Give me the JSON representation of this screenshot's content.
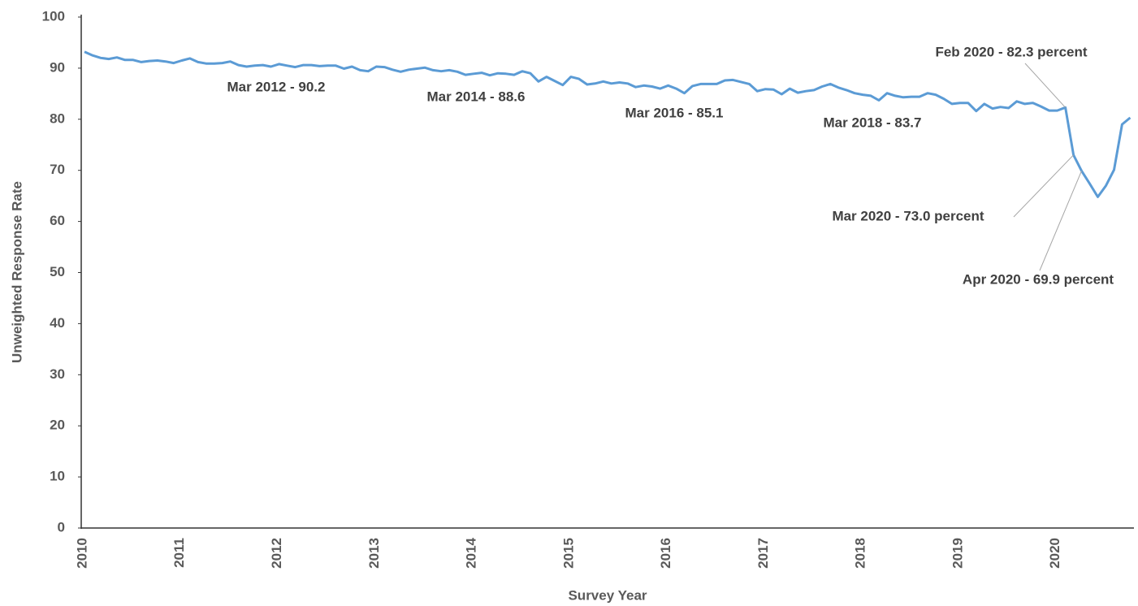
{
  "chart_data": {
    "type": "line",
    "y_label": "Unweighted Response Rate",
    "x_label": "Survey Year",
    "categories": [
      "2010",
      null,
      null,
      null,
      null,
      null,
      null,
      null,
      null,
      null,
      null,
      null,
      "2011",
      null,
      null,
      null,
      null,
      null,
      null,
      null,
      null,
      null,
      null,
      null,
      "2012",
      null,
      null,
      null,
      null,
      null,
      null,
      null,
      null,
      null,
      null,
      null,
      "2013",
      null,
      null,
      null,
      null,
      null,
      null,
      null,
      null,
      null,
      null,
      null,
      "2014",
      null,
      null,
      null,
      null,
      null,
      null,
      null,
      null,
      null,
      null,
      null,
      "2015",
      null,
      null,
      null,
      null,
      null,
      null,
      null,
      null,
      null,
      null,
      null,
      "2016",
      null,
      null,
      null,
      null,
      null,
      null,
      null,
      null,
      null,
      null,
      null,
      "2017",
      null,
      null,
      null,
      null,
      null,
      null,
      null,
      null,
      null,
      null,
      null,
      "2018",
      null,
      null,
      null,
      null,
      null,
      null,
      null,
      null,
      null,
      null,
      null,
      "2019",
      null,
      null,
      null,
      null,
      null,
      null,
      null,
      null,
      null,
      null,
      null,
      "2020",
      null,
      null,
      null,
      null,
      null,
      null,
      null,
      null,
      null
    ],
    "values": [
      93.2,
      92.5,
      92.0,
      91.8,
      92.1,
      91.6,
      91.6,
      91.2,
      91.4,
      91.5,
      91.3,
      91.0,
      91.5,
      91.9,
      91.2,
      90.9,
      90.9,
      91.0,
      91.3,
      90.6,
      90.3,
      90.5,
      90.6,
      90.3,
      90.8,
      90.5,
      90.2,
      90.6,
      90.6,
      90.4,
      90.5,
      90.5,
      89.9,
      90.3,
      89.6,
      89.4,
      90.3,
      90.2,
      89.7,
      89.3,
      89.7,
      89.9,
      90.1,
      89.6,
      89.4,
      89.6,
      89.3,
      88.7,
      88.9,
      89.1,
      88.6,
      89.0,
      88.9,
      88.7,
      89.4,
      89.0,
      87.4,
      88.3,
      87.5,
      86.7,
      88.3,
      87.9,
      86.8,
      87.0,
      87.4,
      87.0,
      87.2,
      87.0,
      86.3,
      86.6,
      86.4,
      86.0,
      86.6,
      86.0,
      85.1,
      86.5,
      86.9,
      86.9,
      86.9,
      87.6,
      87.7,
      87.3,
      86.9,
      85.5,
      85.9,
      85.8,
      84.9,
      86.0,
      85.2,
      85.5,
      85.7,
      86.4,
      86.9,
      86.2,
      85.7,
      85.1,
      84.8,
      84.6,
      83.7,
      85.1,
      84.6,
      84.3,
      84.4,
      84.4,
      85.1,
      84.8,
      84.0,
      83.0,
      83.2,
      83.2,
      81.6,
      83.0,
      82.1,
      82.4,
      82.2,
      83.5,
      83.0,
      83.2,
      82.5,
      81.7,
      81.7,
      82.3,
      73.0,
      69.9,
      67.4,
      64.8,
      67.0,
      70.1,
      79.0,
      80.3
    ],
    "color": "#5b9bd5",
    "ylim": [
      0,
      100
    ],
    "yticks": [
      0,
      10,
      20,
      30,
      40,
      50,
      60,
      70,
      80,
      90,
      100
    ],
    "grid": false,
    "annotations": [
      "Mar 2012 - 90.2",
      "Mar 2014 - 88.6",
      "Mar 2016 - 85.1",
      "Mar 2018 - 83.7",
      "Feb 2020 - 82.3 percent",
      "Mar 2020 - 73.0 percent",
      "Apr 2020 - 69.9 percent"
    ]
  }
}
